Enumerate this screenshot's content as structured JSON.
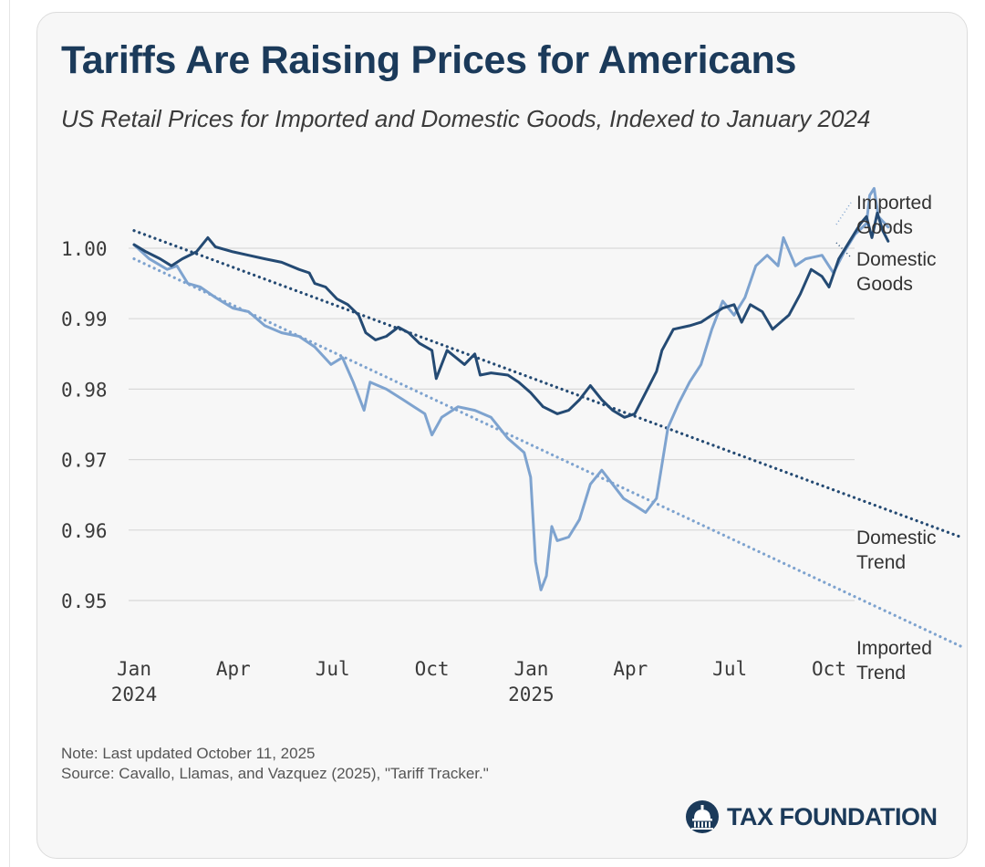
{
  "title": "Tariffs Are Raising Prices for Americans",
  "subtitle": "US Retail Prices for Imported and Domestic Goods, Indexed to January 2024",
  "note": "Note: Last updated October 11, 2025",
  "source": "Source: Cavallo, Llamas, and Vazquez (2025), \"Tariff Tracker.\"",
  "brand": "TAX FOUNDATION",
  "colors": {
    "domestic": "#244a73",
    "imported": "#7ea3cf",
    "grid": "#d9d9d9",
    "tick": "#3a3a3a"
  },
  "chart_data": {
    "type": "line",
    "x_unit": "month",
    "xlim": [
      "2024-01",
      "2025-10"
    ],
    "ylim": [
      0.943,
      1.011
    ],
    "grid": "horizontal",
    "y_ticks": [
      {
        "value": 1.0,
        "label": "1.00"
      },
      {
        "value": 0.99,
        "label": "0.99"
      },
      {
        "value": 0.98,
        "label": "0.98"
      },
      {
        "value": 0.97,
        "label": "0.97"
      },
      {
        "value": 0.96,
        "label": "0.96"
      },
      {
        "value": 0.95,
        "label": "0.95"
      }
    ],
    "x_ticks": [
      {
        "x": "2024-01",
        "line1": "Jan",
        "line2": "2024"
      },
      {
        "x": "2024-04",
        "line1": "Apr",
        "line2": ""
      },
      {
        "x": "2024-07",
        "line1": "Jul",
        "line2": ""
      },
      {
        "x": "2024-10",
        "line1": "Oct",
        "line2": ""
      },
      {
        "x": "2025-01",
        "line1": "Jan",
        "line2": "2025"
      },
      {
        "x": "2025-04",
        "line1": "Apr",
        "line2": ""
      },
      {
        "x": "2025-07",
        "line1": "Jul",
        "line2": ""
      },
      {
        "x": "2025-10",
        "line1": "Oct",
        "line2": ""
      }
    ],
    "series": [
      {
        "name": "Domestic Goods",
        "label_lines": [
          "Domestic",
          "Goods"
        ],
        "style": "solid",
        "points": [
          [
            "2024-01-01",
            1.0005
          ],
          [
            "2024-01-12",
            0.9995
          ],
          [
            "2024-01-25",
            0.9985
          ],
          [
            "2024-02-05",
            0.9975
          ],
          [
            "2024-02-15",
            0.9985
          ],
          [
            "2024-02-28",
            0.9995
          ],
          [
            "2024-03-08",
            1.0015
          ],
          [
            "2024-03-15",
            1.0002
          ],
          [
            "2024-03-31",
            0.9995
          ],
          [
            "2024-04-15",
            0.999
          ],
          [
            "2024-04-30",
            0.9985
          ],
          [
            "2024-05-15",
            0.998
          ],
          [
            "2024-05-31",
            0.997
          ],
          [
            "2024-06-10",
            0.9965
          ],
          [
            "2024-06-15",
            0.995
          ],
          [
            "2024-06-25",
            0.9945
          ],
          [
            "2024-07-05",
            0.9928
          ],
          [
            "2024-07-15",
            0.992
          ],
          [
            "2024-07-25",
            0.9905
          ],
          [
            "2024-08-01",
            0.988
          ],
          [
            "2024-08-10",
            0.987
          ],
          [
            "2024-08-20",
            0.9875
          ],
          [
            "2024-08-31",
            0.9888
          ],
          [
            "2024-09-10",
            0.988
          ],
          [
            "2024-09-20",
            0.9865
          ],
          [
            "2024-10-01",
            0.9855
          ],
          [
            "2024-10-05",
            0.9815
          ],
          [
            "2024-10-15",
            0.9855
          ],
          [
            "2024-10-31",
            0.9835
          ],
          [
            "2024-11-10",
            0.985
          ],
          [
            "2024-11-15",
            0.982
          ],
          [
            "2024-11-25",
            0.9823
          ],
          [
            "2024-12-10",
            0.982
          ],
          [
            "2024-12-20",
            0.981
          ],
          [
            "2024-12-31",
            0.9795
          ],
          [
            "2025-01-12",
            0.9775
          ],
          [
            "2025-01-25",
            0.9765
          ],
          [
            "2025-02-05",
            0.977
          ],
          [
            "2025-02-15",
            0.9785
          ],
          [
            "2025-02-25",
            0.9805
          ],
          [
            "2025-03-05",
            0.9785
          ],
          [
            "2025-03-15",
            0.977
          ],
          [
            "2025-03-26",
            0.976
          ],
          [
            "2025-04-05",
            0.9765
          ],
          [
            "2025-04-15",
            0.9795
          ],
          [
            "2025-04-25",
            0.9825
          ],
          [
            "2025-04-30",
            0.9855
          ],
          [
            "2025-05-10",
            0.9885
          ],
          [
            "2025-05-25",
            0.989
          ],
          [
            "2025-06-05",
            0.9895
          ],
          [
            "2025-06-15",
            0.9905
          ],
          [
            "2025-06-25",
            0.9915
          ],
          [
            "2025-07-05",
            0.992
          ],
          [
            "2025-07-12",
            0.9895
          ],
          [
            "2025-07-20",
            0.992
          ],
          [
            "2025-07-31",
            0.991
          ],
          [
            "2025-08-10",
            0.9885
          ],
          [
            "2025-08-25",
            0.9905
          ],
          [
            "2025-09-05",
            0.9935
          ],
          [
            "2025-09-15",
            0.997
          ],
          [
            "2025-09-25",
            0.996
          ],
          [
            "2025-10-01",
            0.9945
          ],
          [
            "2025-10-10",
            0.9985
          ],
          [
            "2025-10-20",
            1.001
          ],
          [
            "2025-10-30",
            1.0035
          ],
          [
            "2025-11-05",
            1.0045
          ],
          [
            "2025-11-10",
            1.0015
          ],
          [
            "2025-11-15",
            1.005
          ],
          [
            "2025-11-20",
            1.0025
          ],
          [
            "2025-11-25",
            1.001
          ]
        ]
      },
      {
        "name": "Imported Goods",
        "label_lines": [
          "Imported",
          "Goods"
        ],
        "style": "solid",
        "points": [
          [
            "2024-01-01",
            1.0005
          ],
          [
            "2024-01-15",
            0.9985
          ],
          [
            "2024-02-01",
            0.997
          ],
          [
            "2024-02-10",
            0.9975
          ],
          [
            "2024-02-20",
            0.995
          ],
          [
            "2024-03-01",
            0.9945
          ],
          [
            "2024-03-15",
            0.993
          ],
          [
            "2024-03-31",
            0.9915
          ],
          [
            "2024-04-15",
            0.991
          ],
          [
            "2024-04-30",
            0.989
          ],
          [
            "2024-05-15",
            0.988
          ],
          [
            "2024-05-31",
            0.9875
          ],
          [
            "2024-06-15",
            0.986
          ],
          [
            "2024-06-30",
            0.9835
          ],
          [
            "2024-07-10",
            0.9845
          ],
          [
            "2024-07-20",
            0.981
          ],
          [
            "2024-07-30",
            0.977
          ],
          [
            "2024-08-05",
            0.981
          ],
          [
            "2024-08-20",
            0.98
          ],
          [
            "2024-09-05",
            0.9785
          ],
          [
            "2024-09-15",
            0.9775
          ],
          [
            "2024-09-25",
            0.9765
          ],
          [
            "2024-10-01",
            0.9735
          ],
          [
            "2024-10-10",
            0.976
          ],
          [
            "2024-10-25",
            0.9775
          ],
          [
            "2024-11-10",
            0.977
          ],
          [
            "2024-11-25",
            0.976
          ],
          [
            "2024-12-10",
            0.973
          ],
          [
            "2024-12-25",
            0.971
          ],
          [
            "2024-12-31",
            0.9675
          ],
          [
            "2025-01-05",
            0.9555
          ],
          [
            "2025-01-10",
            0.9515
          ],
          [
            "2025-01-15",
            0.9535
          ],
          [
            "2025-01-20",
            0.9605
          ],
          [
            "2025-01-25",
            0.9585
          ],
          [
            "2025-02-05",
            0.959
          ],
          [
            "2025-02-15",
            0.9615
          ],
          [
            "2025-02-25",
            0.9665
          ],
          [
            "2025-03-05",
            0.9685
          ],
          [
            "2025-03-15",
            0.9665
          ],
          [
            "2025-03-25",
            0.9645
          ],
          [
            "2025-04-05",
            0.9635
          ],
          [
            "2025-04-15",
            0.9625
          ],
          [
            "2025-04-25",
            0.9645
          ],
          [
            "2025-05-05",
            0.9745
          ],
          [
            "2025-05-15",
            0.978
          ],
          [
            "2025-05-25",
            0.981
          ],
          [
            "2025-06-05",
            0.9835
          ],
          [
            "2025-06-15",
            0.9885
          ],
          [
            "2025-06-25",
            0.9925
          ],
          [
            "2025-07-05",
            0.9905
          ],
          [
            "2025-07-15",
            0.993
          ],
          [
            "2025-07-25",
            0.9975
          ],
          [
            "2025-08-05",
            0.999
          ],
          [
            "2025-08-15",
            0.9975
          ],
          [
            "2025-08-20",
            1.0015
          ],
          [
            "2025-08-31",
            0.9975
          ],
          [
            "2025-09-10",
            0.9985
          ],
          [
            "2025-09-25",
            0.999
          ],
          [
            "2025-10-05",
            0.9965
          ],
          [
            "2025-10-15",
            0.9995
          ],
          [
            "2025-10-25",
            1.002
          ],
          [
            "2025-11-05",
            1.0035
          ],
          [
            "2025-11-08",
            1.0075
          ],
          [
            "2025-11-12",
            1.0085
          ],
          [
            "2025-11-16",
            1.0045
          ],
          [
            "2025-11-22",
            1.0035
          ],
          [
            "2025-11-25",
            1.003
          ]
        ]
      },
      {
        "name": "Domestic Trend",
        "label_lines": [
          "Domestic",
          "Trend"
        ],
        "style": "dotted",
        "points": [
          [
            "2024-01-01",
            1.0025
          ],
          [
            "2026-01-31",
            0.959
          ]
        ]
      },
      {
        "name": "Imported Trend",
        "label_lines": [
          "Imported",
          "Trend"
        ],
        "style": "dotted",
        "points": [
          [
            "2024-01-01",
            0.9985
          ],
          [
            "2026-01-31",
            0.9435
          ]
        ]
      }
    ]
  }
}
